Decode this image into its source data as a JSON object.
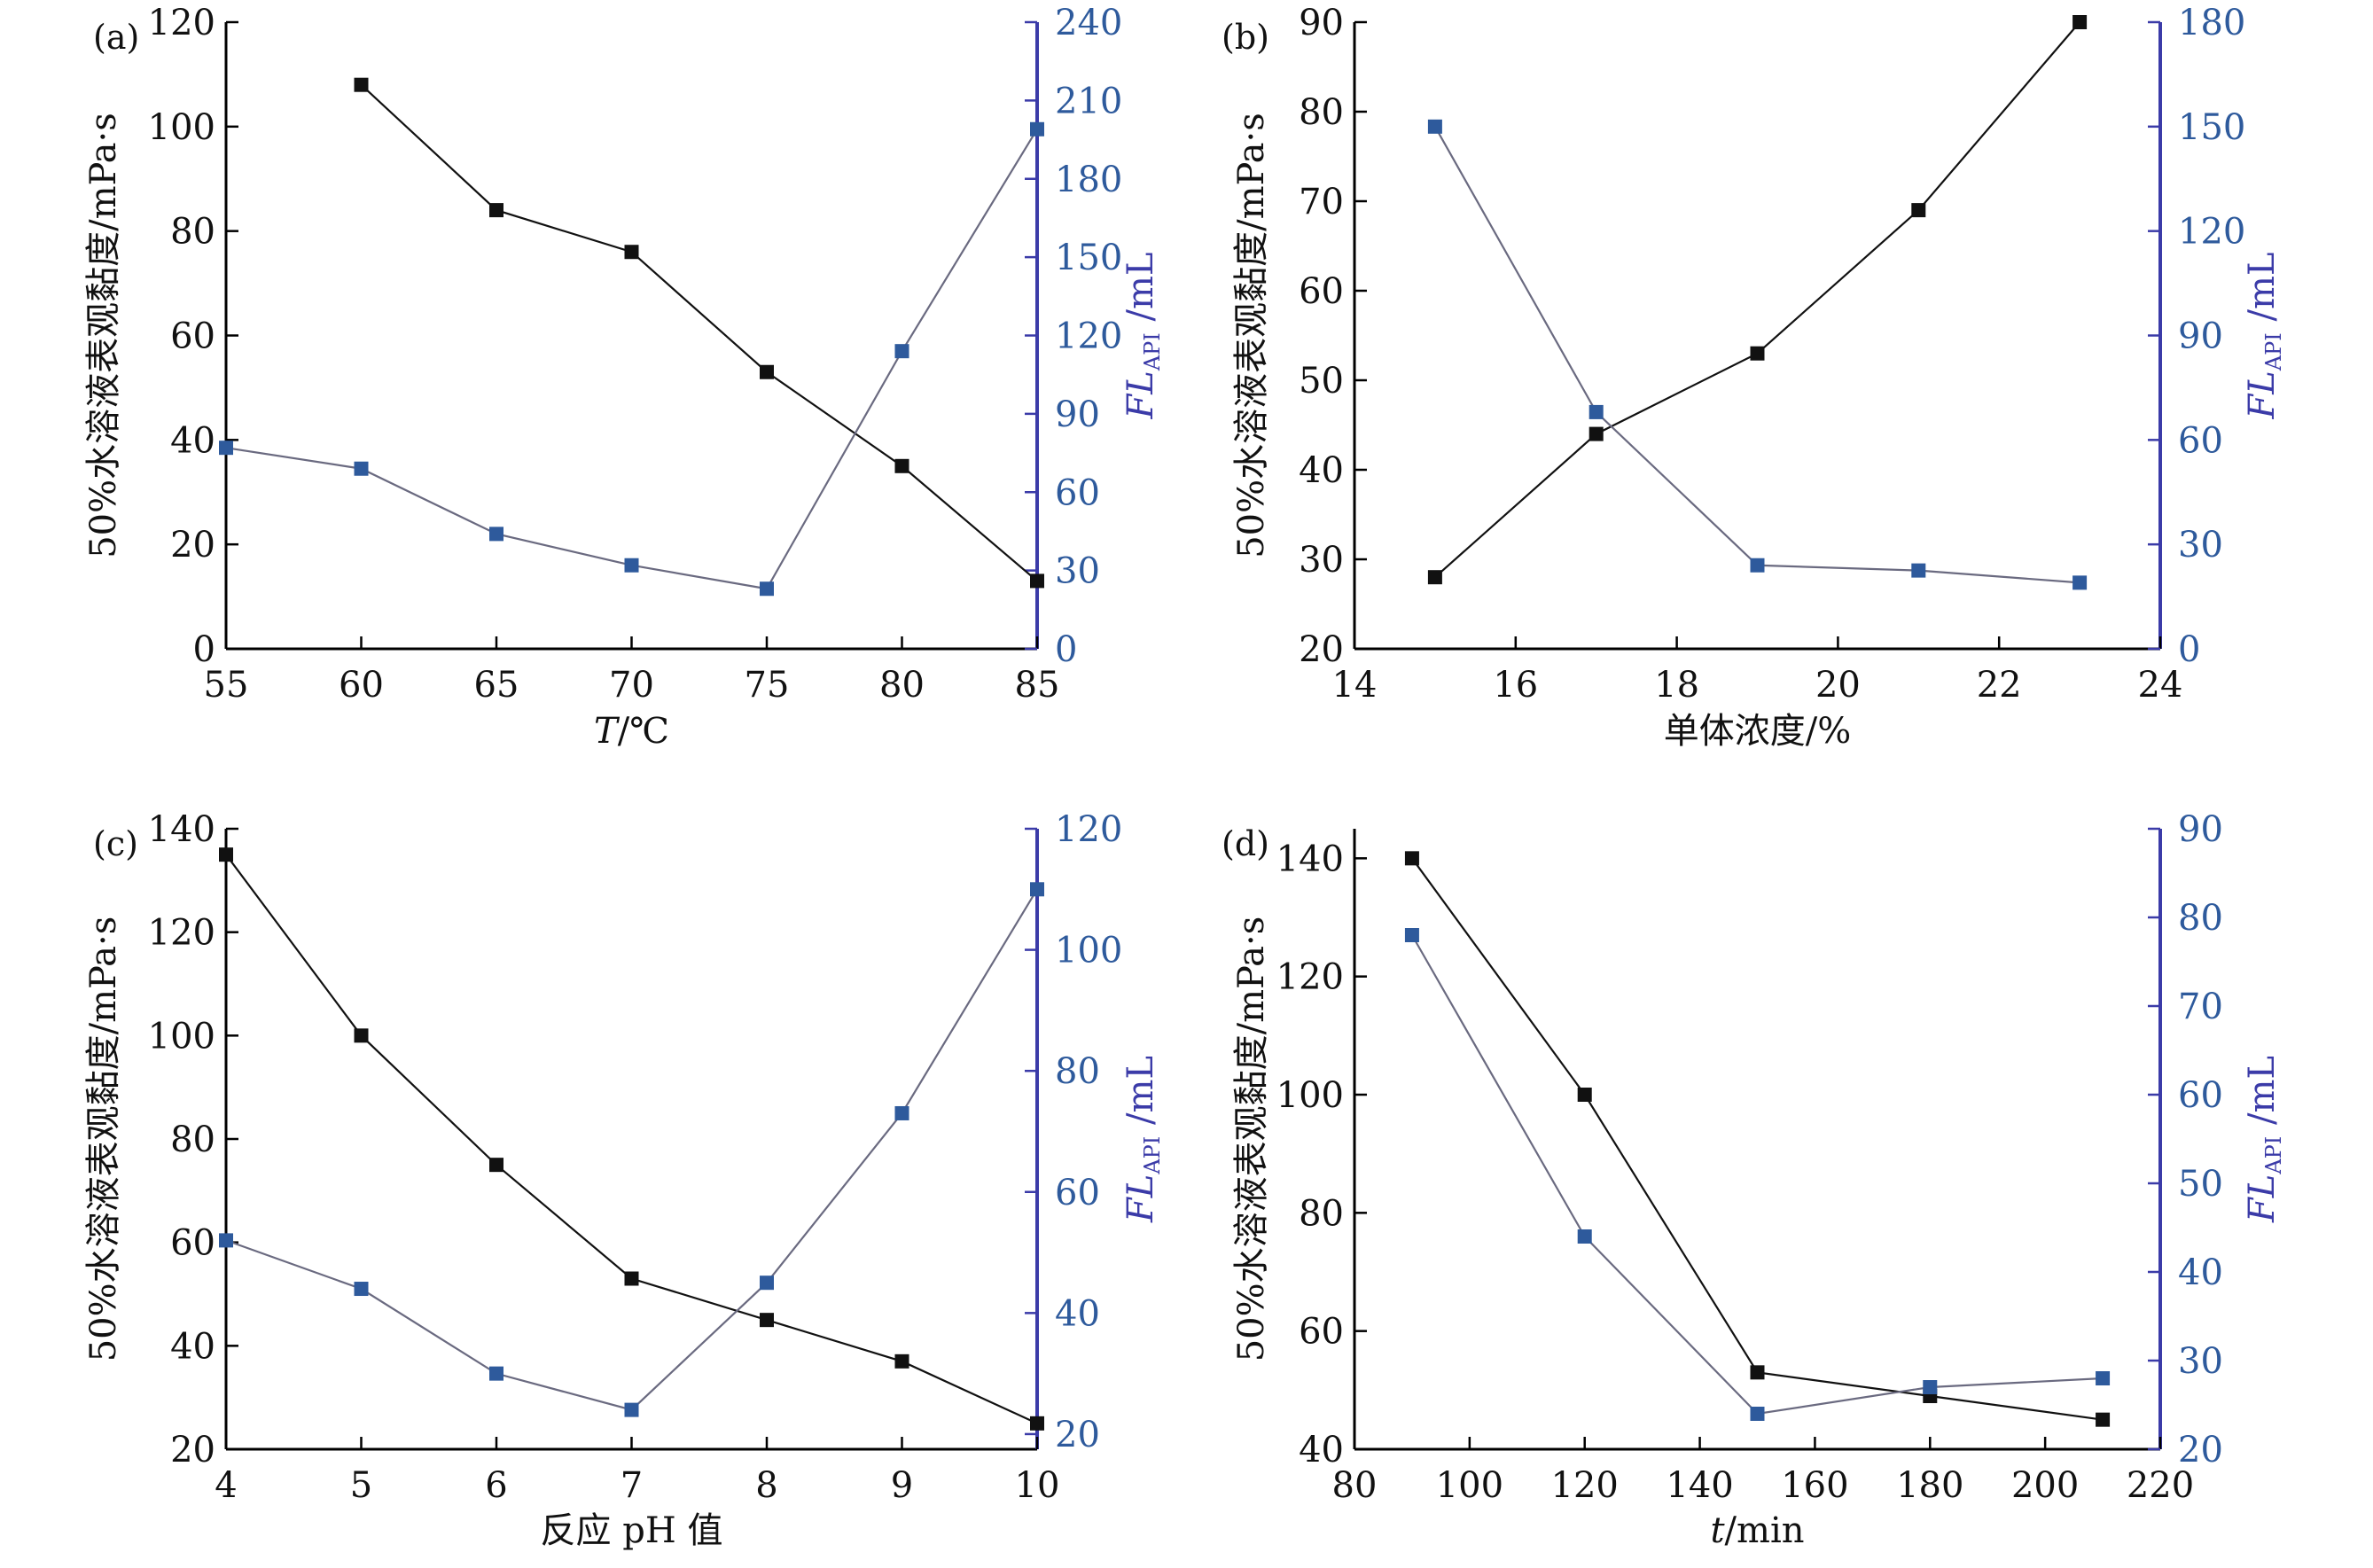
{
  "colors": {
    "series1": "#111111",
    "series2": "#2e5a9c",
    "series2_line": "#6a6a80",
    "right_axis": "#3b3ba8"
  },
  "chart_data": [
    {
      "type": "line",
      "panel": "(a)",
      "xlabel_html": "<tspan font-style='italic'>T</tspan>/℃",
      "xlabel_text": "T/℃",
      "ylabel": "50%水溶液表观黏度/mPa·s",
      "y2label_main": "FL",
      "y2label_sub": "API",
      "y2label_unit": " /mL",
      "xlim": [
        55,
        85
      ],
      "xticks": [
        55,
        60,
        65,
        70,
        75,
        80,
        85
      ],
      "ylim": [
        0,
        120
      ],
      "yticks": [
        0,
        20,
        40,
        60,
        80,
        100,
        120
      ],
      "y2lim": [
        0,
        240
      ],
      "y2ticks": [
        0,
        30,
        60,
        90,
        120,
        150,
        180,
        210,
        240
      ],
      "series": [
        {
          "name": "50%水溶液表观黏度/mPa·s",
          "axis": "left",
          "x": [
            60,
            65,
            70,
            75,
            80,
            85
          ],
          "y": [
            108,
            84,
            76,
            53,
            35,
            13
          ]
        },
        {
          "name": "FL_API /mL",
          "axis": "right",
          "x": [
            55,
            60,
            65,
            70,
            75,
            80,
            85
          ],
          "y": [
            77,
            69,
            44,
            32,
            23,
            114,
            199
          ]
        }
      ]
    },
    {
      "type": "line",
      "panel": "(b)",
      "xlabel_text": "单体浓度/%",
      "ylabel": "50%水溶液表观黏度/mPa·s",
      "y2label_main": "FL",
      "y2label_sub": "API",
      "y2label_unit": " /mL",
      "xlim": [
        14,
        24
      ],
      "xticks": [
        14,
        16,
        18,
        20,
        22,
        24
      ],
      "ylim": [
        20,
        90
      ],
      "yticks": [
        20,
        30,
        40,
        50,
        60,
        70,
        80,
        90
      ],
      "y2lim": [
        0,
        180
      ],
      "y2ticks": [
        0,
        30,
        60,
        90,
        120,
        150,
        180
      ],
      "series": [
        {
          "name": "50%水溶液表观黏度/mPa·s",
          "axis": "left",
          "x": [
            15,
            17,
            19,
            21,
            23
          ],
          "y": [
            28,
            44,
            53,
            69,
            90
          ]
        },
        {
          "name": "FL_API /mL",
          "axis": "right",
          "x": [
            15,
            17,
            19,
            21,
            23
          ],
          "y": [
            150,
            68,
            24,
            22.5,
            19
          ]
        }
      ]
    },
    {
      "type": "line",
      "panel": "(c)",
      "xlabel_text": "反应 pH 值",
      "ylabel": "50%水溶液表观黏度/mPa·s",
      "y2label_main": "FL",
      "y2label_sub": "API",
      "y2label_unit": " /mL",
      "xlim": [
        4,
        10
      ],
      "xticks": [
        4,
        5,
        6,
        7,
        8,
        9,
        10
      ],
      "ylim": [
        20,
        140
      ],
      "yticks": [
        20,
        40,
        60,
        80,
        100,
        120,
        140
      ],
      "y2lim": [
        17.5,
        120
      ],
      "y2ticks": [
        20,
        40,
        60,
        80,
        100,
        120
      ],
      "series": [
        {
          "name": "50%水溶液表观黏度/mPa·s",
          "axis": "left",
          "x": [
            4,
            5,
            6,
            7,
            8,
            9,
            10
          ],
          "y": [
            135,
            100,
            75,
            53,
            45,
            37,
            25
          ]
        },
        {
          "name": "FL_API /mL",
          "axis": "right",
          "x": [
            4,
            5,
            6,
            7,
            8,
            9,
            10
          ],
          "y": [
            52,
            44,
            30,
            24,
            45,
            73,
            110
          ]
        }
      ]
    },
    {
      "type": "line",
      "panel": "(d)",
      "xlabel_html": "<tspan font-style='italic'>t</tspan>/min",
      "xlabel_text": "t/min",
      "ylabel": "50%水溶液表观黏度/mPa·s",
      "y2label_main": "FL",
      "y2label_sub": "API",
      "y2label_unit": " /mL",
      "xlim": [
        80,
        220
      ],
      "xticks": [
        80,
        100,
        120,
        140,
        160,
        180,
        200,
        220
      ],
      "ylim": [
        40,
        145
      ],
      "yticks": [
        40,
        60,
        80,
        100,
        120,
        140
      ],
      "y2lim": [
        20,
        90
      ],
      "y2ticks": [
        20,
        30,
        40,
        50,
        60,
        70,
        80,
        90
      ],
      "series": [
        {
          "name": "50%水溶液表观黏度/mPa·s",
          "axis": "left",
          "x": [
            90,
            120,
            150,
            180,
            210
          ],
          "y": [
            140,
            100,
            53,
            49,
            45
          ]
        },
        {
          "name": "FL_API /mL",
          "axis": "right",
          "x": [
            90,
            120,
            150,
            180,
            210
          ],
          "y": [
            78,
            44,
            24,
            27,
            28
          ]
        }
      ]
    }
  ]
}
